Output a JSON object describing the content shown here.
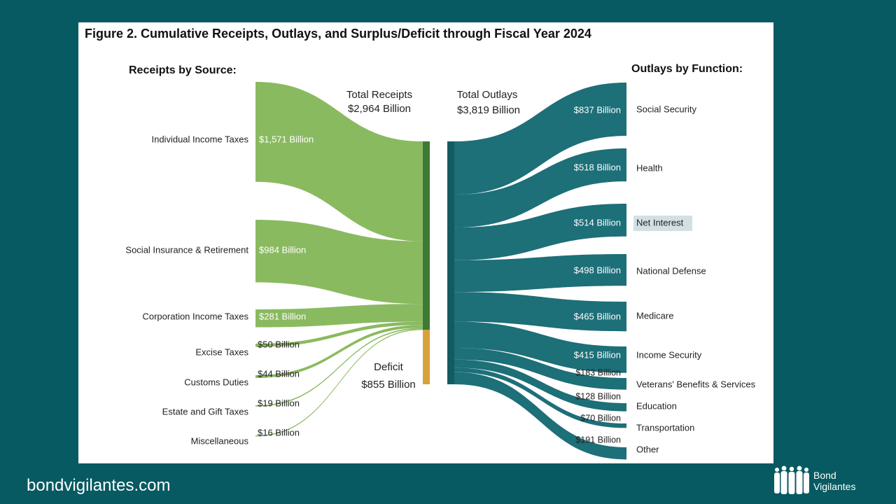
{
  "chart_data": {
    "type": "sankey",
    "title": "Figure 2. Cumulative Receipts, Outlays, and Surplus/Deficit through Fiscal Year 2024",
    "receipts_heading": "Receipts by Source:",
    "outlays_heading": "Outlays by Function:",
    "total_receipts": {
      "label": "Total Receipts",
      "value_label": "$2,964 Billion",
      "value": 2964
    },
    "total_outlays": {
      "label": "Total Outlays",
      "value_label": "$3,819 Billion",
      "value": 3819
    },
    "deficit": {
      "label": "Deficit",
      "value_label": "$855 Billion",
      "value": 855
    },
    "receipts": [
      {
        "name": "Individual Income Taxes",
        "value": 1571,
        "value_label": "$1,571 Billion"
      },
      {
        "name": "Social Insurance & Retirement",
        "value": 984,
        "value_label": "$984 Billion"
      },
      {
        "name": "Corporation Income Taxes",
        "value": 281,
        "value_label": "$281 Billion"
      },
      {
        "name": "Excise Taxes",
        "value": 50,
        "value_label": "$50 Billion"
      },
      {
        "name": "Customs Duties",
        "value": 44,
        "value_label": "$44 Billion"
      },
      {
        "name": "Estate and Gift Taxes",
        "value": 19,
        "value_label": "$19 Billion"
      },
      {
        "name": "Miscellaneous",
        "value": 16,
        "value_label": "$16 Billion"
      }
    ],
    "outlays": [
      {
        "name": "Social Security",
        "value": 837,
        "value_label": "$837 Billion"
      },
      {
        "name": "Health",
        "value": 518,
        "value_label": "$518 Billion"
      },
      {
        "name": "Net Interest",
        "value": 514,
        "value_label": "$514 Billion",
        "highlighted": true
      },
      {
        "name": "National Defense",
        "value": 498,
        "value_label": "$498 Billion"
      },
      {
        "name": "Medicare",
        "value": 465,
        "value_label": "$465 Billion"
      },
      {
        "name": "Income Security",
        "value": 415,
        "value_label": "$415 Billion"
      },
      {
        "name": "Veterans' Benefits & Services",
        "value": 183,
        "value_label": "$183 Billion"
      },
      {
        "name": "Education",
        "value": 128,
        "value_label": "$128 Billion"
      },
      {
        "name": "Transportation",
        "value": 70,
        "value_label": "$70 Billion"
      },
      {
        "name": "Other",
        "value": 191,
        "value_label": "$191 Billion"
      }
    ],
    "colors": {
      "receipts": "#8aba60",
      "receipts_bar": "#3f7a35",
      "deficit": "#d8a23a",
      "outlays": "#1d6f78",
      "highlight_bg": "#d3e0e3"
    }
  },
  "footer": {
    "url": "bondvigilantes.com",
    "brand_line1": "Bond",
    "brand_line2": "Vigilantes"
  }
}
